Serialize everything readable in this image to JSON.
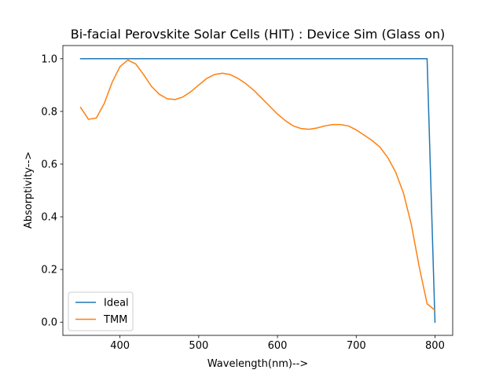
{
  "chart_data": {
    "type": "line",
    "title": "Bi-facial Perovskite Solar Cells (HIT) : Device Sim (Glass on)",
    "xlabel": "Wavelength(nm)-->",
    "ylabel": "Absorptivity-->",
    "xlim": [
      327.5,
      822.5
    ],
    "ylim": [
      -0.05,
      1.05
    ],
    "xticks": [
      400,
      500,
      600,
      700,
      800
    ],
    "yticks": [
      0.0,
      0.2,
      0.4,
      0.6,
      0.8,
      1.0
    ],
    "xtick_labels": [
      "400",
      "500",
      "600",
      "700",
      "800"
    ],
    "ytick_labels": [
      "0.0",
      "0.2",
      "0.4",
      "0.6",
      "0.8",
      "1.0"
    ],
    "grid": false,
    "legend": "lower-left",
    "series": [
      {
        "name": "Ideal",
        "color": "#1f77b4",
        "x": [
          350,
          790,
          800
        ],
        "y": [
          1.0,
          1.0,
          0.0
        ]
      },
      {
        "name": "TMM",
        "color": "#ff7f0e",
        "x": [
          350,
          360,
          370,
          380,
          390,
          400,
          410,
          420,
          430,
          440,
          450,
          460,
          470,
          480,
          490,
          500,
          510,
          520,
          530,
          540,
          550,
          560,
          570,
          580,
          590,
          600,
          610,
          620,
          630,
          640,
          650,
          660,
          670,
          680,
          690,
          700,
          710,
          720,
          730,
          740,
          750,
          760,
          770,
          780,
          790,
          800
        ],
        "y": [
          0.815,
          0.77,
          0.775,
          0.83,
          0.91,
          0.97,
          0.995,
          0.98,
          0.94,
          0.895,
          0.865,
          0.848,
          0.845,
          0.855,
          0.875,
          0.9,
          0.925,
          0.94,
          0.945,
          0.94,
          0.925,
          0.905,
          0.88,
          0.85,
          0.82,
          0.79,
          0.765,
          0.745,
          0.735,
          0.732,
          0.737,
          0.745,
          0.75,
          0.75,
          0.745,
          0.73,
          0.71,
          0.69,
          0.665,
          0.625,
          0.57,
          0.49,
          0.37,
          0.21,
          0.07,
          0.045
        ]
      }
    ]
  }
}
